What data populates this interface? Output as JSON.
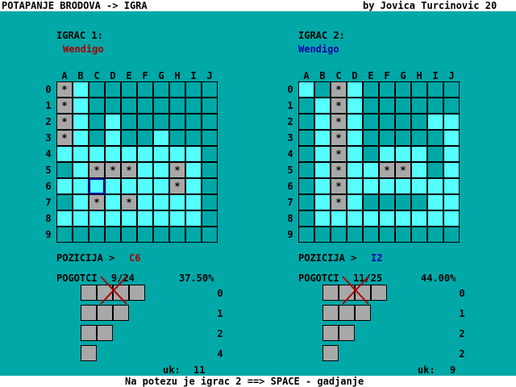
{
  "title_left": "POTAPANJE BRODOVA -> IGRA",
  "title_right": "by Jovica Turcinovic 20",
  "status_line": "Na potezu je igrac 2 ==> SPACE - gadjanje",
  "col_labels": [
    "A",
    "B",
    "C",
    "D",
    "E",
    "F",
    "G",
    "H",
    "I",
    "J"
  ],
  "row_labels": [
    "0",
    "1",
    "2",
    "3",
    "4",
    "5",
    "6",
    "7",
    "8",
    "9"
  ],
  "colors": {
    "water": "#00A8A8",
    "miss": "#55FFFF",
    "hit": "#A8A8A8",
    "p1_name": "#A80000",
    "p2_name": "#0000A8",
    "pos_p1": "#A80000",
    "pos_p2": "#0000A8",
    "cross": "#A80000"
  },
  "players": [
    {
      "header": "IGRAC 1:",
      "name": "Wendigo",
      "position_label": "POZICIJA >",
      "position_value": "C6",
      "hits_label": "POGOTCI",
      "hits_value": "9/24",
      "percent": "37.50%",
      "total_label": "uk:",
      "total_value": "11",
      "ship_counts": [
        "0",
        "1",
        "2",
        "4"
      ],
      "cursor": [
        6,
        2
      ],
      "grid": [
        "HMWWWWWWWW",
        "HMWWWWWWWW",
        "HMWMWWWWWW",
        "HMWMWWMWWW",
        "MMMMMMMMMW",
        "WMHHHMMHMW",
        "MMMMMMMHMW",
        "WMHMHMMMMW",
        "MMMMMMMMMW",
        "WWWWWWWWWW"
      ]
    },
    {
      "header": "IGRAC 2:",
      "name": "Wendigo",
      "position_label": "POZICIJA >",
      "position_value": "I2",
      "hits_label": "POGOTCI",
      "hits_value": "11/25",
      "percent": "44.00%",
      "total_label": "uk:",
      "total_value": "9",
      "ship_counts": [
        "0",
        "1",
        "2",
        "2"
      ],
      "cursor": [
        -1,
        -1
      ],
      "grid": [
        "MWHMWWWWWW",
        "WMHMWWWWWW",
        "WMHMWWWWMM",
        "WMHMWWWWWM",
        "WMHMWMMMWM",
        "WMHMMHHMWM",
        "WMHMMMMMMM",
        "WMHMWWWWMM",
        "WMMMMMMMMM",
        "WWWWWWWWWW"
      ]
    }
  ]
}
